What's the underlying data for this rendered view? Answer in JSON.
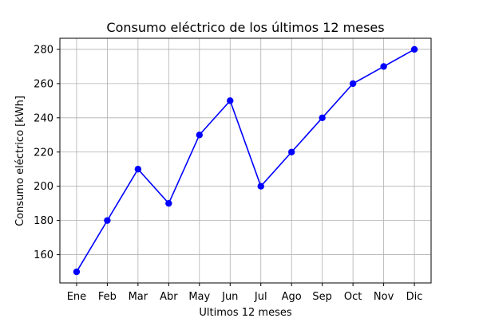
{
  "chart_data": {
    "type": "line",
    "title": "Consumo eléctrico de los últimos 12 meses",
    "xlabel": "Ultimos 12 meses",
    "ylabel": "Consumo eléctrico [kWh]",
    "categories": [
      "Ene",
      "Feb",
      "Mar",
      "Abr",
      "May",
      "Jun",
      "Jul",
      "Ago",
      "Sep",
      "Oct",
      "Nov",
      "Dic"
    ],
    "series": [
      {
        "values": [
          150,
          180,
          210,
          190,
          230,
          250,
          200,
          220,
          240,
          260,
          270,
          280
        ]
      }
    ],
    "ylim": [
      143.5,
      286.5
    ],
    "yticks": [
      160,
      180,
      200,
      220,
      240,
      260,
      280
    ],
    "grid": true,
    "line_color": "#0000ff",
    "marker": "circle",
    "grid_color": "#b0b0b0"
  }
}
